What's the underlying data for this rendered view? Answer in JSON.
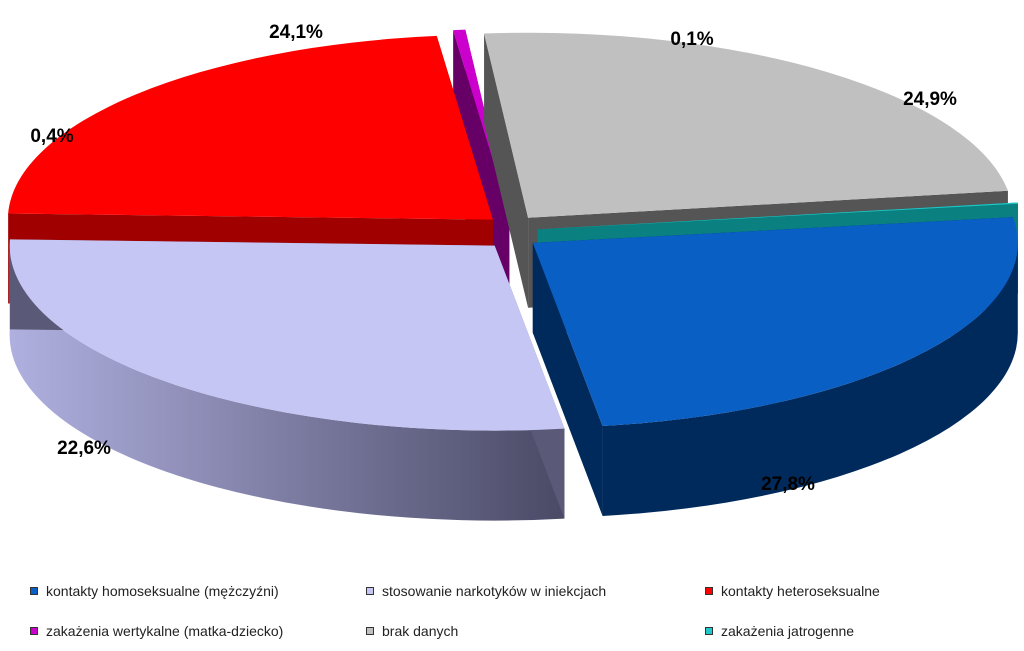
{
  "chart_data": {
    "type": "pie",
    "style": "3d-exploded",
    "slices": [
      {
        "label": "kontakty homoseksualne (mężczyźni)",
        "value": 24.9,
        "display": "24,9%",
        "color": "#0a5fc4",
        "side_color": "#002a5c"
      },
      {
        "label": "stosowanie narkotyków w iniekcjach",
        "value": 27.8,
        "display": "27,8%",
        "color": "#c6c6f5",
        "side_color": "#5a5a78"
      },
      {
        "label": "kontakty heteroseksualne",
        "value": 22.6,
        "display": "22,6%",
        "color": "#ff0000",
        "side_color": "#a00000"
      },
      {
        "label": "zakażenia wertykalne (matka-dziecko)",
        "value": 0.4,
        "display": "0,4%",
        "color": "#cc00cc",
        "side_color": "#660066"
      },
      {
        "label": "brak danych",
        "value": 24.1,
        "display": "24,1%",
        "color": "#c0c0c0",
        "side_color": "#555555"
      },
      {
        "label": "zakażenia jatrogenne",
        "value": 0.1,
        "display": "0,1%",
        "color": "#1ec8c8",
        "side_color": "#0a8080"
      }
    ],
    "legend_position": "bottom"
  }
}
